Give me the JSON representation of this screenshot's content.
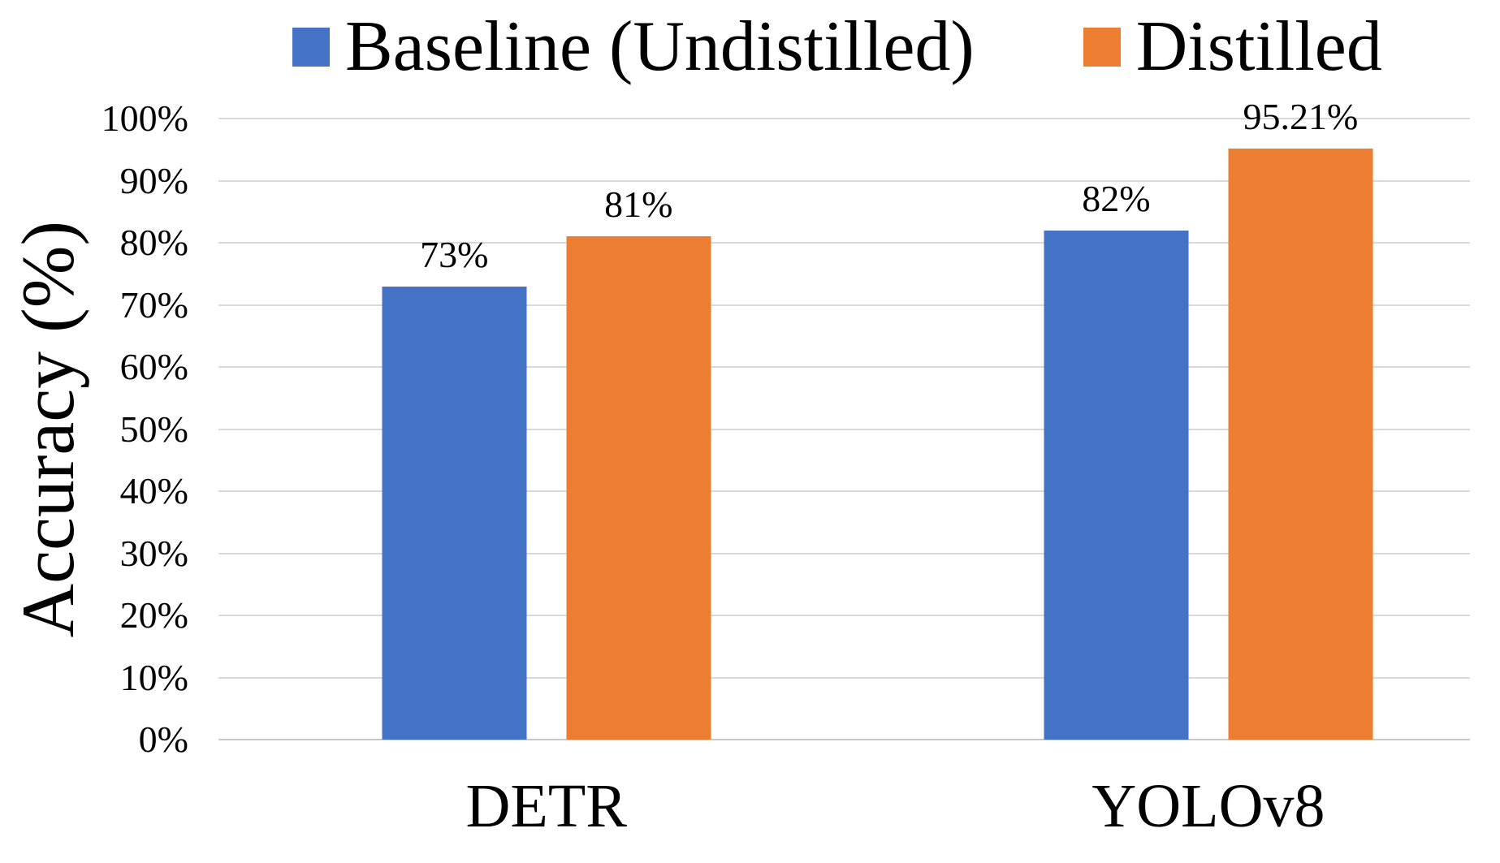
{
  "chart_data": {
    "type": "bar",
    "title": "",
    "categories": [
      "DETR",
      "YOLOv8"
    ],
    "series": [
      {
        "name": "Baseline (Undistilled)",
        "color": "#4472C4",
        "values": [
          73,
          82
        ],
        "value_labels": [
          "73%",
          "82%"
        ]
      },
      {
        "name": "Distilled",
        "color": "#ED7D31",
        "values": [
          81,
          95.21
        ],
        "value_labels": [
          "81%",
          "95.21%"
        ]
      }
    ],
    "xlabel": "",
    "ylabel": "Accuracy (%)",
    "ylim": [
      0,
      100
    ],
    "ytick_step": 10,
    "ytick_labels": [
      "0%",
      "10%",
      "20%",
      "30%",
      "40%",
      "50%",
      "60%",
      "70%",
      "80%",
      "90%",
      "100%"
    ],
    "grid": true,
    "legend_position": "top",
    "colors": {
      "gridline": "#D9D9D9",
      "axis_line": "#C9C7C7",
      "text": "#000000",
      "background": "#FFFFFF"
    }
  }
}
